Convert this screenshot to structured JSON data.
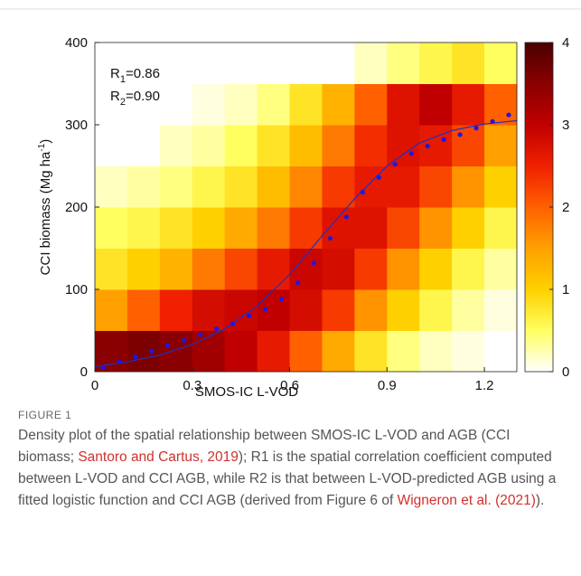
{
  "chart_data": {
    "type": "density",
    "xlabel": "SMOS-IC L-VOD",
    "ylabel": [
      "CCI biomass (Mg ha",
      "-1",
      ")"
    ],
    "annotations": [
      {
        "label": "R",
        "sub": "1",
        "value": "=0.86"
      },
      {
        "label": "R",
        "sub": "2",
        "value": "=0.90"
      }
    ],
    "xlim": [
      0,
      1.3
    ],
    "ylim": [
      0,
      400
    ],
    "xticks": [
      0,
      0.3,
      0.6,
      0.9,
      1.2
    ],
    "yticks": [
      0,
      100,
      200,
      300,
      400
    ],
    "density": {
      "x_edges": [
        0,
        0.1,
        0.2,
        0.3,
        0.4,
        0.5,
        0.6,
        0.7,
        0.8,
        0.9,
        1.0,
        1.1,
        1.2,
        1.3
      ],
      "y_edges": [
        0,
        50,
        100,
        150,
        200,
        250,
        300,
        350,
        400
      ],
      "values": [
        [
          3.5,
          1.5,
          0.8,
          0.5,
          0.2,
          0,
          0,
          0
        ],
        [
          3.6,
          2.0,
          1.0,
          0.6,
          0.3,
          0,
          0,
          0
        ],
        [
          3.5,
          2.5,
          1.3,
          0.8,
          0.4,
          0.2,
          0,
          0
        ],
        [
          3.3,
          2.8,
          1.8,
          1.0,
          0.6,
          0.3,
          0.1,
          0
        ],
        [
          3.0,
          2.9,
          2.2,
          1.4,
          0.8,
          0.5,
          0.2,
          0
        ],
        [
          2.6,
          3.0,
          2.6,
          1.8,
          1.2,
          0.8,
          0.4,
          0
        ],
        [
          2.0,
          2.8,
          2.9,
          2.3,
          1.7,
          1.2,
          0.8,
          0
        ],
        [
          1.4,
          2.3,
          2.8,
          2.7,
          2.3,
          1.8,
          1.3,
          0
        ],
        [
          0.8,
          1.6,
          2.3,
          2.7,
          2.6,
          2.4,
          2.0,
          0.2
        ],
        [
          0.4,
          1.0,
          1.6,
          2.2,
          2.6,
          2.7,
          2.7,
          0.4
        ],
        [
          0.2,
          0.6,
          1.0,
          1.6,
          2.2,
          2.6,
          3.0,
          0.6
        ],
        [
          0.1,
          0.3,
          0.6,
          1.0,
          1.6,
          2.2,
          2.6,
          0.8
        ],
        [
          0,
          0.1,
          0.3,
          0.6,
          1.0,
          1.5,
          2.0,
          0.5
        ]
      ]
    },
    "colorbar": {
      "lim": [
        0,
        4
      ],
      "ticks": [
        0,
        1,
        2,
        3,
        4
      ],
      "colors": [
        "#ffffff",
        "#ffff60",
        "#ffd000",
        "#ffa000",
        "#ff6000",
        "#f02000",
        "#c00000",
        "#8a0000",
        "#4a0000"
      ]
    },
    "points": {
      "color": "#1a1ae0",
      "x": [
        0.025,
        0.075,
        0.125,
        0.175,
        0.225,
        0.275,
        0.325,
        0.375,
        0.425,
        0.475,
        0.525,
        0.575,
        0.625,
        0.675,
        0.725,
        0.775,
        0.825,
        0.875,
        0.925,
        0.975,
        1.025,
        1.075,
        1.125,
        1.175,
        1.225,
        1.275
      ],
      "y": [
        5,
        12,
        18,
        25,
        32,
        38,
        45,
        52,
        58,
        68,
        76,
        88,
        108,
        132,
        162,
        188,
        218,
        236,
        252,
        265,
        274,
        282,
        288,
        296,
        304,
        312
      ]
    },
    "fit": {
      "color": "#2030c0",
      "x": [
        0,
        0.1,
        0.2,
        0.3,
        0.4,
        0.5,
        0.6,
        0.7,
        0.8,
        0.9,
        1.0,
        1.1,
        1.2,
        1.3
      ],
      "y": [
        6,
        12,
        20,
        33,
        52,
        80,
        118,
        165,
        210,
        250,
        278,
        293,
        301,
        305
      ]
    }
  },
  "caption": {
    "label": "FIGURE 1",
    "parts": [
      "Density plot of the spatial relationship between SMOS-IC L-VOD and AGB (CCI biomass; ",
      "Santoro and Cartus, 2019",
      "); R1 is the spatial correlation coefficient computed between L-VOD and CCI AGB, while R2 is that between L-VOD-predicted AGB using a fitted logistic function and CCI AGB (derived from Figure 6 of ",
      "Wigneron et al. (2021)",
      ")."
    ]
  }
}
